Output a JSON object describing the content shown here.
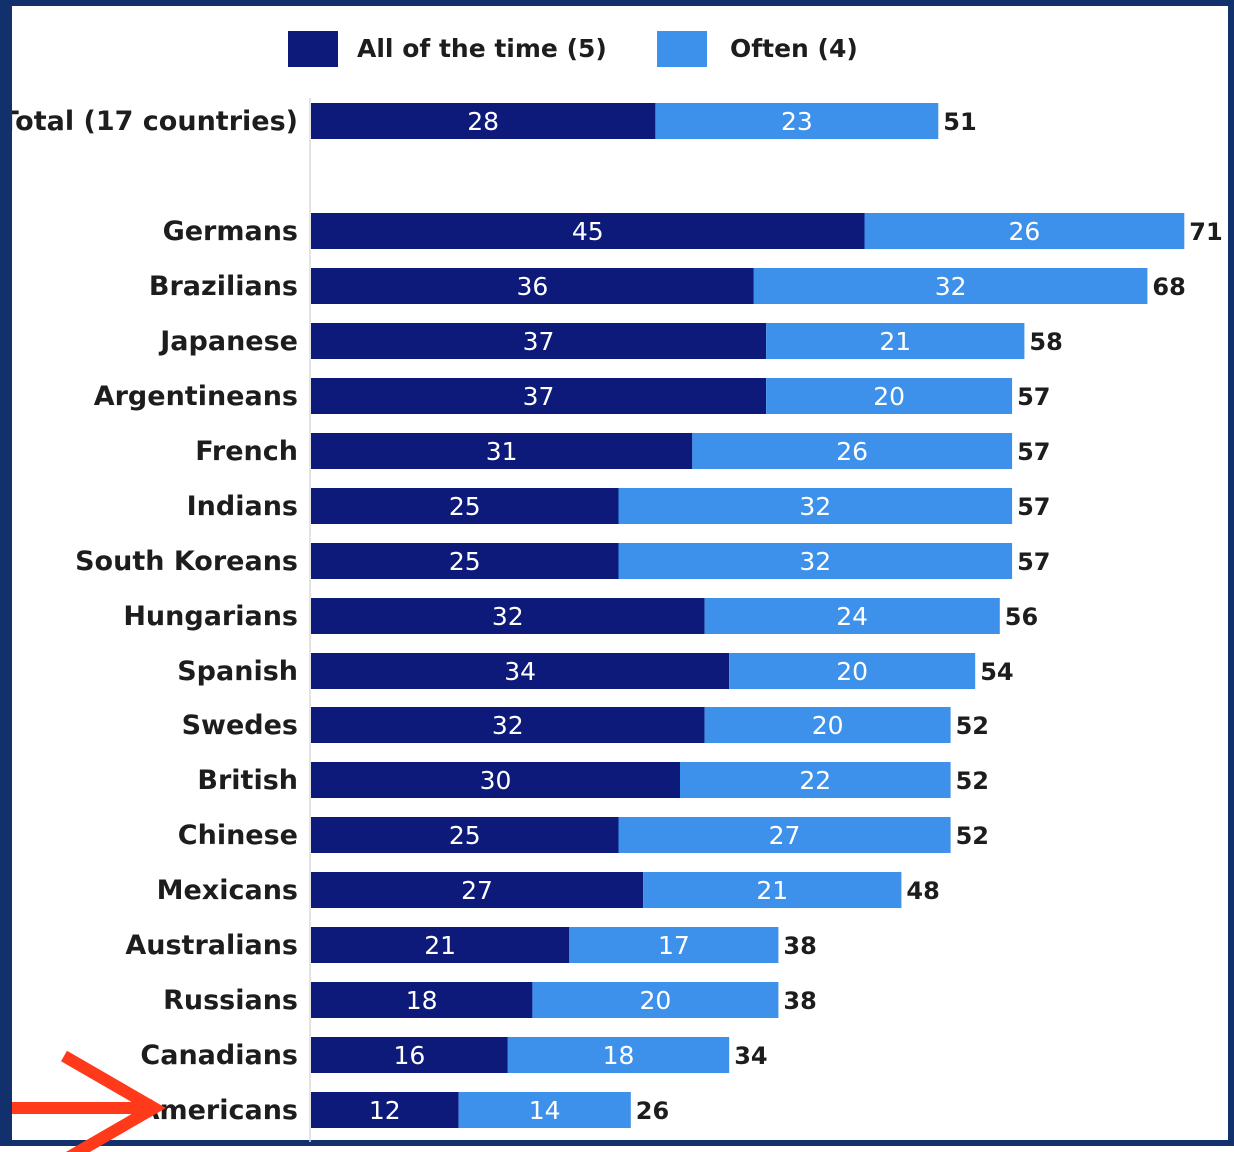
{
  "chart_data": {
    "type": "bar",
    "orientation": "horizontal",
    "stacked": true,
    "categories": [
      "Total (17 countries)",
      "Germans",
      "Brazilians",
      "Japanese",
      "Argentineans",
      "French",
      "Indians",
      "South Koreans",
      "Hungarians",
      "Spanish",
      "Swedes",
      "British",
      "Chinese",
      "Mexicans",
      "Australians",
      "Russians",
      "Canadians",
      "Americans"
    ],
    "series": [
      {
        "name": "All of the time (5)",
        "color": "#0d1a7a",
        "values": [
          28,
          45,
          36,
          37,
          37,
          31,
          25,
          25,
          32,
          34,
          32,
          30,
          25,
          27,
          21,
          18,
          16,
          12
        ]
      },
      {
        "name": "Often (4)",
        "color": "#3d91eb",
        "values": [
          23,
          26,
          32,
          21,
          20,
          26,
          32,
          32,
          24,
          20,
          20,
          22,
          27,
          21,
          17,
          20,
          18,
          14
        ]
      }
    ],
    "totals": [
      51,
      71,
      68,
      58,
      57,
      57,
      57,
      57,
      56,
      54,
      52,
      52,
      52,
      48,
      38,
      38,
      34,
      26
    ],
    "highlight": {
      "category": "Americans",
      "marker": "arrow",
      "color": "#ff3a1a"
    },
    "legend": "top",
    "grid": false,
    "title": "",
    "xlabel": "",
    "ylabel": ""
  }
}
